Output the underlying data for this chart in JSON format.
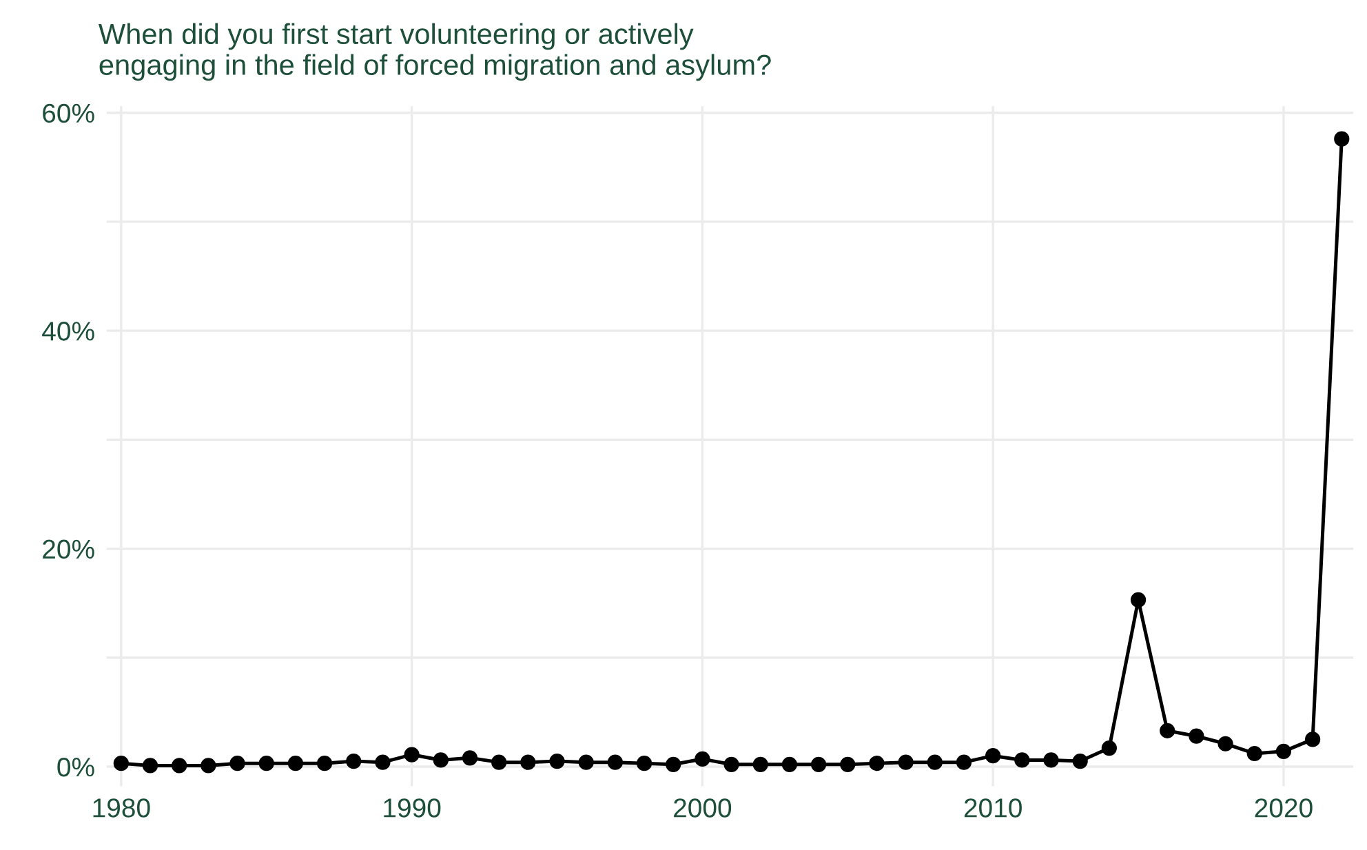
{
  "chart_data": {
    "type": "line",
    "title": "When did you first start volunteering or actively\nengaging in the field of forced migration and asylum?",
    "x": [
      1980,
      1981,
      1982,
      1983,
      1984,
      1985,
      1986,
      1987,
      1988,
      1989,
      1990,
      1991,
      1992,
      1993,
      1994,
      1995,
      1996,
      1997,
      1998,
      1999,
      2000,
      2001,
      2002,
      2003,
      2004,
      2005,
      2006,
      2007,
      2008,
      2009,
      2010,
      2011,
      2012,
      2013,
      2014,
      2015,
      2016,
      2017,
      2018,
      2019,
      2020,
      2021,
      2022
    ],
    "series": [
      {
        "color": "#000000",
        "values": [
          0.3,
          0.1,
          0.1,
          0.1,
          0.3,
          0.3,
          0.3,
          0.3,
          0.5,
          0.4,
          1.1,
          0.6,
          0.8,
          0.4,
          0.4,
          0.5,
          0.4,
          0.4,
          0.3,
          0.2,
          0.7,
          0.2,
          0.2,
          0.2,
          0.2,
          0.2,
          0.3,
          0.4,
          0.4,
          0.4,
          1.0,
          0.6,
          0.6,
          0.5,
          1.7,
          15.3,
          3.3,
          2.8,
          2.1,
          1.2,
          1.4,
          2.5,
          57.6
        ]
      }
    ],
    "xlim": [
      1979.5,
      2022.4
    ],
    "xticks": [
      1980,
      1990,
      2000,
      2010,
      2020
    ],
    "ylim": [
      -1.8,
      60.6
    ],
    "yticks": [
      {
        "value": 0,
        "label": "0%"
      },
      {
        "value": 10,
        "label": null
      },
      {
        "value": 20,
        "label": "20%"
      },
      {
        "value": 30,
        "label": null
      },
      {
        "value": 40,
        "label": "40%"
      },
      {
        "value": 50,
        "label": null
      },
      {
        "value": 60,
        "label": "60%"
      }
    ],
    "grid": true,
    "marker": "circle",
    "line_style": "solid"
  }
}
